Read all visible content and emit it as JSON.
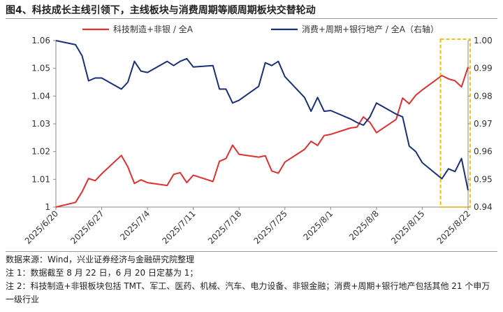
{
  "title": "图4、科技成长主线引领下，主线板块与消费周期等顺周期板块交替轮动",
  "notes": {
    "source": "数据来源：Wind，兴业证券经济与金融研究院整理",
    "note1": "注 1：数据截至 8 月 22 日，6 月 20 日定基为 1；",
    "note2": "注 2：科技制造+非银板块包括 TMT、军工、医药、机械、汽车、电力设备、非银金融；消费+周期+银行地产包括其他 21 个申万一级行业"
  },
  "colors": {
    "red": "#e03030",
    "navy": "#1a2f7a",
    "highlight": "#f5b800",
    "axis": "#888888"
  },
  "chart_data": {
    "type": "line",
    "x_tick_labels": [
      "2025/6/20",
      "2025/6/27",
      "2025/7/4",
      "2025/7/11",
      "2025/7/18",
      "2025/7/25",
      "2025/8/1",
      "2025/8/8",
      "2025/8/15",
      "2025/8/22"
    ],
    "y_left": {
      "min": 1.0,
      "max": 1.06,
      "ticks": [
        "1",
        "1.01",
        "1.02",
        "1.03",
        "1.04",
        "1.05",
        "1.06"
      ]
    },
    "y_right": {
      "min": 0.94,
      "max": 1.0,
      "ticks": [
        "0.94",
        "0.95",
        "0.96",
        "0.97",
        "0.98",
        "0.99",
        "1.00"
      ]
    },
    "highlight_range": [
      "2025/8/18",
      "2025/8/22"
    ],
    "series": [
      {
        "name": "科技制造+非银 / 全A",
        "axis": "left",
        "color": "#e03030",
        "x": [
          "2025/6/20",
          "2025/6/23",
          "2025/6/24",
          "2025/6/25",
          "2025/6/26",
          "2025/6/27",
          "2025/6/30",
          "2025/7/1",
          "2025/7/2",
          "2025/7/3",
          "2025/7/4",
          "2025/7/7",
          "2025/7/8",
          "2025/7/9",
          "2025/7/10",
          "2025/7/11",
          "2025/7/14",
          "2025/7/15",
          "2025/7/16",
          "2025/7/17",
          "2025/7/18",
          "2025/7/21",
          "2025/7/22",
          "2025/7/23",
          "2025/7/24",
          "2025/7/25",
          "2025/7/28",
          "2025/7/29",
          "2025/7/30",
          "2025/7/31",
          "2025/8/1",
          "2025/8/4",
          "2025/8/5",
          "2025/8/6",
          "2025/8/7",
          "2025/8/8",
          "2025/8/11",
          "2025/8/12",
          "2025/8/13",
          "2025/8/14",
          "2025/8/15",
          "2025/8/18",
          "2025/8/19",
          "2025/8/20",
          "2025/8/21",
          "2025/8/22"
        ],
        "y": [
          1.0,
          1.0017,
          1.0055,
          1.0103,
          1.0095,
          1.012,
          1.0186,
          1.0145,
          1.0085,
          1.0098,
          1.0088,
          1.0078,
          1.0118,
          1.0124,
          1.0088,
          1.0115,
          1.0092,
          1.0165,
          1.0175,
          1.0223,
          1.019,
          1.018,
          1.0185,
          1.013,
          1.0122,
          1.0162,
          1.0208,
          1.0237,
          1.0222,
          1.0258,
          1.0262,
          1.0285,
          1.0288,
          1.0325,
          1.0305,
          1.0268,
          1.0316,
          1.0393,
          1.0372,
          1.0403,
          1.0422,
          1.0474,
          1.0462,
          1.0455,
          1.0433,
          1.0505
        ]
      },
      {
        "name": "消费+周期+银行地产 / 全A（右轴）",
        "axis": "right",
        "color": "#1a2f7a",
        "x": [
          "2025/6/20",
          "2025/6/23",
          "2025/6/24",
          "2025/6/25",
          "2025/6/26",
          "2025/6/27",
          "2025/6/30",
          "2025/7/1",
          "2025/7/2",
          "2025/7/3",
          "2025/7/4",
          "2025/7/7",
          "2025/7/8",
          "2025/7/9",
          "2025/7/10",
          "2025/7/11",
          "2025/7/14",
          "2025/7/15",
          "2025/7/16",
          "2025/7/17",
          "2025/7/18",
          "2025/7/21",
          "2025/7/22",
          "2025/7/23",
          "2025/7/24",
          "2025/7/25",
          "2025/7/28",
          "2025/7/29",
          "2025/7/30",
          "2025/7/31",
          "2025/8/1",
          "2025/8/4",
          "2025/8/5",
          "2025/8/6",
          "2025/8/7",
          "2025/8/8",
          "2025/8/11",
          "2025/8/12",
          "2025/8/13",
          "2025/8/14",
          "2025/8/15",
          "2025/8/18",
          "2025/8/19",
          "2025/8/20",
          "2025/8/21",
          "2025/8/22"
        ],
        "y": [
          1.0,
          0.9985,
          0.9945,
          0.9855,
          0.9865,
          0.9865,
          0.9825,
          0.985,
          0.9925,
          0.989,
          0.9885,
          0.9925,
          0.991,
          0.9925,
          0.9935,
          0.9905,
          0.991,
          0.9825,
          0.9825,
          0.9775,
          0.9785,
          0.9835,
          0.992,
          0.991,
          0.9925,
          0.987,
          0.9795,
          0.9745,
          0.9795,
          0.9745,
          0.9748,
          0.9718,
          0.9705,
          0.9695,
          0.9725,
          0.9775,
          0.9735,
          0.9725,
          0.962,
          0.96,
          0.956,
          0.9502,
          0.9538,
          0.9528,
          0.9575,
          0.946
        ]
      }
    ]
  }
}
